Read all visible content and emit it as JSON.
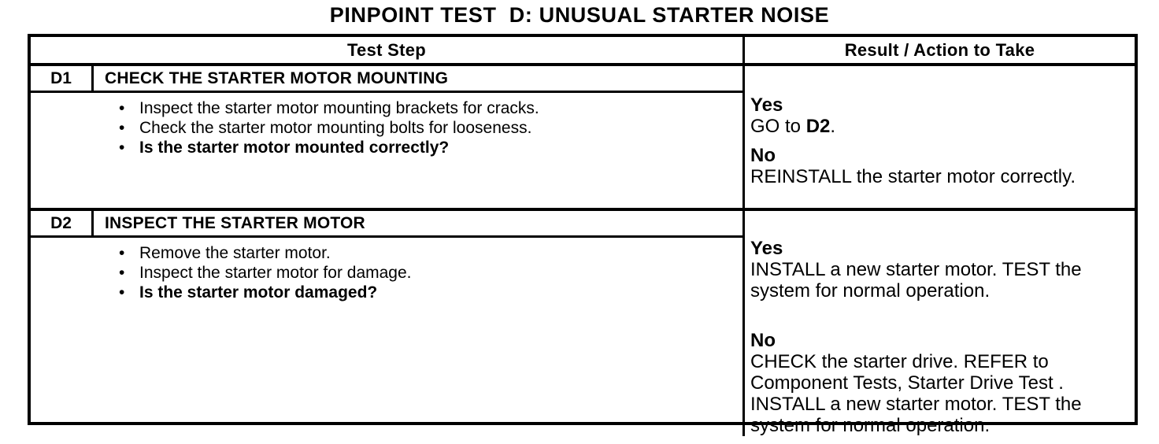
{
  "page_title": "PINPOINT TEST  D: UNUSUAL STARTER NOISE",
  "bullet_icon": "•",
  "table": {
    "header": {
      "test_step_label": "Test Step",
      "result_label": "Result / Action to Take"
    },
    "sections": [
      {
        "id": "D1",
        "title": "CHECK THE STARTER MOTOR MOUNTING",
        "bullets": [
          "Inspect the starter motor mounting brackets for cracks.",
          "Check the starter motor mounting bolts for looseness.",
          "Is the starter motor mounted correctly?"
        ],
        "result": {
          "yes_label": "Yes",
          "yes_action_pre": "GO to ",
          "yes_action_ref": "D2",
          "yes_action_post": ".",
          "no_label": "No",
          "no_lines": [
            "REINSTALL the starter motor correctly."
          ]
        }
      },
      {
        "id": "D2",
        "title": "INSPECT THE STARTER MOTOR",
        "bullets": [
          "Remove the starter motor.",
          "Inspect the starter motor for damage.",
          "Is the starter motor damaged?"
        ],
        "result": {
          "yes_label": "Yes",
          "yes_lines": [
            "INSTALL a new starter motor. TEST the",
            "system for normal operation."
          ],
          "no_label": "No",
          "no_lines": [
            "CHECK the starter drive. REFER to",
            "Component Tests, Starter Drive Test .",
            "INSTALL a new starter motor. TEST the",
            "system for normal operation."
          ]
        }
      }
    ]
  }
}
